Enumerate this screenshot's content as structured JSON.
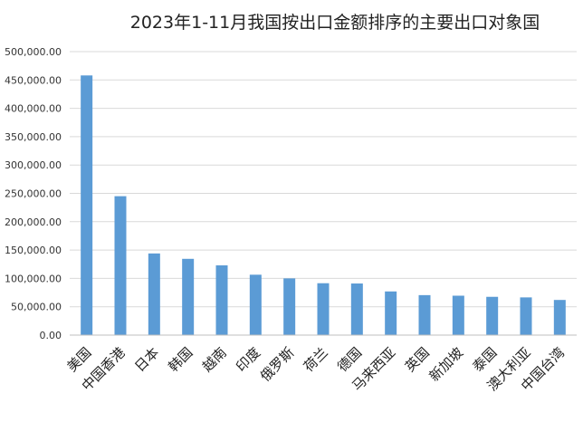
{
  "chart_data": {
    "type": "bar",
    "title": "2023年1-11月我国按出口金额排序的主要出口对象国",
    "xlabel": "",
    "ylabel": "",
    "ylim": [
      0,
      500000
    ],
    "yticks": [
      "0.00",
      "50,000.00",
      "100,000.00",
      "150,000.00",
      "200,000.00",
      "250,000.00",
      "300,000.00",
      "350,000.00",
      "400,000.00",
      "450,000.00",
      "500,000.00"
    ],
    "categories": [
      "美国",
      "中国香港",
      "日本",
      "韩国",
      "越南",
      "印度",
      "俄罗斯",
      "荷兰",
      "德国",
      "马来西亚",
      "英国",
      "新加坡",
      "泰国",
      "澳大利亚",
      "中国台湾"
    ],
    "values": [
      458000,
      245000,
      144000,
      134500,
      123000,
      106500,
      100000,
      91500,
      91000,
      77000,
      70500,
      69500,
      67500,
      66500,
      62000
    ],
    "bar_color": "#5b9bd5",
    "grid": true,
    "legend": "none"
  }
}
